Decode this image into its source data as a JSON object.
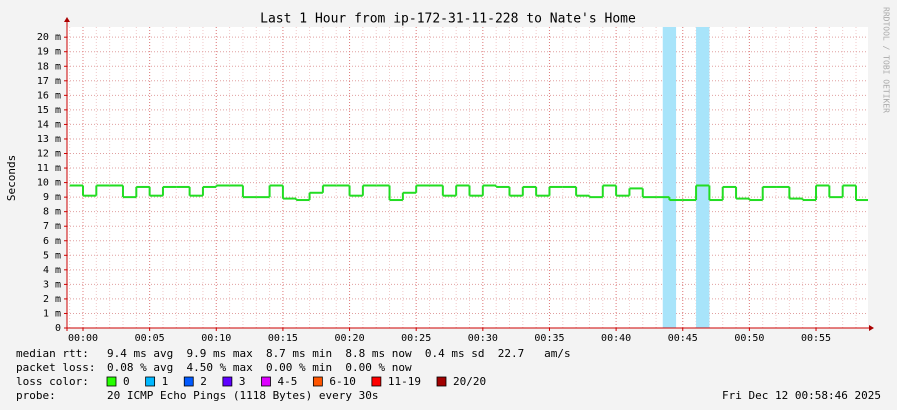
{
  "chart_data": {
    "type": "line",
    "title": "Last 1 Hour from ip-172-31-11-228 to Nate's Home",
    "y_label": "Seconds",
    "watermark": "RRDTOOL / TOBI OETIKER",
    "xlim": [
      -1.2,
      58.9
    ],
    "xticks": [
      {
        "value": 0,
        "label": "00:00"
      },
      {
        "value": 5,
        "label": "00:05"
      },
      {
        "value": 10,
        "label": "00:10"
      },
      {
        "value": 15,
        "label": "00:15"
      },
      {
        "value": 20,
        "label": "00:20"
      },
      {
        "value": 25,
        "label": "00:25"
      },
      {
        "value": 30,
        "label": "00:30"
      },
      {
        "value": 35,
        "label": "00:35"
      },
      {
        "value": 40,
        "label": "00:40"
      },
      {
        "value": 45,
        "label": "00:45"
      },
      {
        "value": 50,
        "label": "00:50"
      },
      {
        "value": 55,
        "label": "00:55"
      }
    ],
    "ylim": [
      0,
      20.7
    ],
    "yticks": [
      0,
      {
        "value": 1,
        "label": "1 m"
      },
      {
        "value": 2,
        "label": "2 m"
      },
      {
        "value": 3,
        "label": "3 m"
      },
      {
        "value": 4,
        "label": "4 m"
      },
      {
        "value": 5,
        "label": "5 m"
      },
      {
        "value": 6,
        "label": "6 m"
      },
      {
        "value": 7,
        "label": "7 m"
      },
      {
        "value": 8,
        "label": "8 m"
      },
      {
        "value": 9,
        "label": "9 m"
      },
      {
        "value": 10,
        "label": "10 m"
      },
      {
        "value": 11,
        "label": "11 m"
      },
      {
        "value": 12,
        "label": "12 m"
      },
      {
        "value": 13,
        "label": "13 m"
      },
      {
        "value": 14,
        "label": "14 m"
      },
      {
        "value": 15,
        "label": "15 m"
      },
      {
        "value": 16,
        "label": "16 m"
      },
      {
        "value": 17,
        "label": "17 m"
      },
      {
        "value": 18,
        "label": "18 m"
      },
      {
        "value": 19,
        "label": "19 m"
      },
      {
        "value": 20,
        "label": "20 m"
      }
    ],
    "grid": true,
    "series": [
      {
        "name": "median rtt",
        "color": "#22dd22",
        "x": [
          -1,
          0,
          1,
          2,
          3,
          4,
          5,
          6,
          7,
          8,
          9,
          10,
          11,
          12,
          13,
          14,
          15,
          16,
          17,
          18,
          19,
          20,
          21,
          22,
          23,
          24,
          25,
          26,
          27,
          28,
          29,
          30,
          31,
          32,
          33,
          34,
          35,
          36,
          37,
          38,
          39,
          40,
          41,
          42,
          43,
          44,
          45,
          46,
          47,
          48,
          49,
          50,
          51,
          52,
          53,
          54,
          55,
          56,
          57,
          58
        ],
        "values": [
          9.8,
          9.1,
          9.8,
          9.8,
          9.0,
          9.7,
          9.1,
          9.7,
          9.7,
          9.1,
          9.7,
          9.8,
          9.8,
          9.0,
          9.0,
          9.8,
          8.9,
          8.8,
          9.3,
          9.8,
          9.8,
          9.1,
          9.8,
          9.8,
          8.8,
          9.3,
          9.8,
          9.8,
          9.1,
          9.8,
          9.1,
          9.8,
          9.7,
          9.1,
          9.7,
          9.1,
          9.7,
          9.7,
          9.1,
          9.0,
          9.8,
          9.1,
          9.6,
          9.0,
          9.0,
          8.8,
          8.8,
          9.8,
          8.8,
          9.7,
          8.9,
          8.8,
          9.7,
          9.7,
          8.9,
          8.8,
          9.8,
          9.0,
          9.8,
          8.8
        ]
      }
    ],
    "loss_periods": {
      "color": "#a8e4fa",
      "start": [
        43.5,
        46.0
      ],
      "end": [
        44.5,
        47.0
      ]
    },
    "legend": {
      "rows": [
        {
          "label": "median rtt:",
          "text": "9.4 ms avg  9.9 ms max  8.7 ms min  8.8 ms now  0.4 ms sd  22.7   am/s"
        },
        {
          "label": "packet loss:",
          "text": "0.08 % avg  4.50 % max  0.00 % min  0.00 % now"
        }
      ],
      "loss_color_label": "loss color:",
      "loss_colors": [
        {
          "label": "0",
          "color": "#26ff00"
        },
        {
          "label": "1",
          "color": "#00b8ff"
        },
        {
          "label": "2",
          "color": "#0059ff"
        },
        {
          "label": "3",
          "color": "#5e00ff"
        },
        {
          "label": "4-5",
          "color": "#dd00ff"
        },
        {
          "label": "6-10",
          "color": "#ff5500"
        },
        {
          "label": "11-19",
          "color": "#ff0000"
        },
        {
          "label": "20/20",
          "color": "#a10000"
        }
      ],
      "probe_label": "probe:",
      "probe_text": "20 ICMP Echo Pings (1118 Bytes) every 30s",
      "timestamp": "Fri Dec 12 00:58:46 2025"
    }
  }
}
